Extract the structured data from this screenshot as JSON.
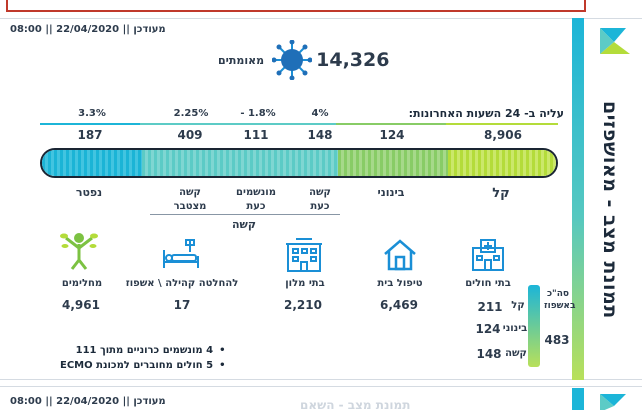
{
  "header": {
    "meta": "מעודכן || 22/04/2020 || 08:00",
    "title": "תמונת מצב - מאושפזים"
  },
  "confirmed": {
    "label": "מאומתים",
    "value": "14,326"
  },
  "rise": {
    "title": "עליה ב- 24 השעות האחרונות:",
    "pct_dead": "3.3%",
    "pct_severe_cum": "2.25%",
    "pct_ventilated": "- 1.8%",
    "pct_severe_now": "4%"
  },
  "counts": {
    "dead": "187",
    "severe_cum": "409",
    "ventilated": "111",
    "severe_now": "148",
    "moderate": "124",
    "light": "8,906"
  },
  "categories": {
    "dead": "נפטר",
    "severe_cum": "קשה\nמצטבר",
    "ventilated": "מונשמים\nכעת",
    "severe_now": "קשה\nכעת",
    "moderate": "בינוני",
    "light": "קל",
    "severe_group": "קשה"
  },
  "facilities": {
    "recovered": {
      "label": "מחלימים",
      "value": "4,961"
    },
    "community": {
      "label": "להחלטה קהילה \\ אשפוז",
      "value": "17"
    },
    "hotels": {
      "label": "בתי מלון",
      "value": "2,210"
    },
    "home": {
      "label": "טיפול בית",
      "value": "6,469"
    },
    "hospitals": {
      "label": "בתי חולים",
      "total_label": "סה\"כ באשפוז",
      "total": "483",
      "light_label": "קל",
      "light": "211",
      "moderate_label": "בינוני",
      "moderate": "124",
      "severe_label": "קשה",
      "severe": "148"
    }
  },
  "bullets": [
    "4 מונשמים כרוניים מתוך 111",
    "5 חולים מחוברים למכונת ECMO"
  ],
  "bottom": {
    "meta": "מעודכן || 22/04/2020 || 08:00",
    "ghost_title": "תמונת מצב - השאם"
  },
  "colors": {
    "accent_cyan": "#1cb5d8",
    "accent_green": "#b4dc3a",
    "accent_teal": "#5ccbc6",
    "text": "#2d3b4c"
  }
}
